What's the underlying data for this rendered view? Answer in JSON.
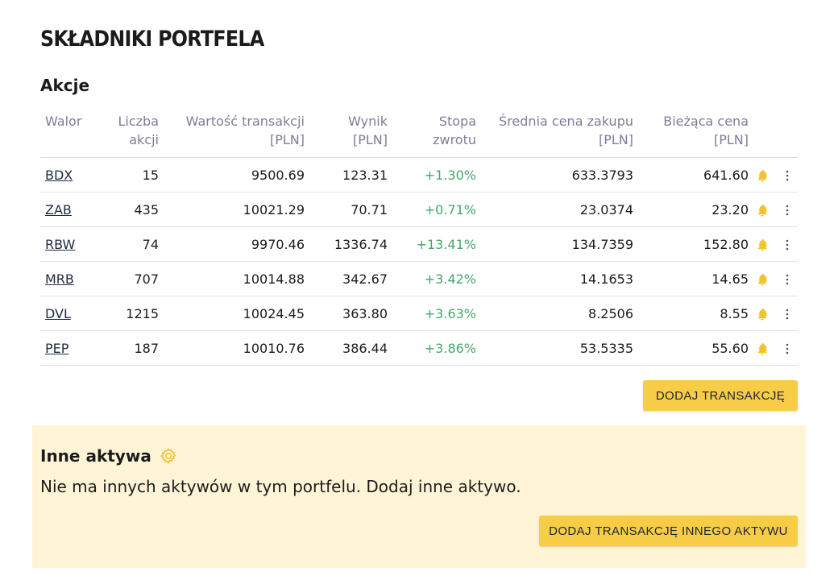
{
  "page_title": "SKŁADNIKI PORTFELA",
  "stocks": {
    "title": "Akcje",
    "columns": [
      {
        "line1": "Walor",
        "line2": ""
      },
      {
        "line1": "Liczba",
        "line2": "akcji"
      },
      {
        "line1": "Wartość transakcji",
        "line2": "[PLN]"
      },
      {
        "line1": "Wynik",
        "line2": "[PLN]"
      },
      {
        "line1": "Stopa",
        "line2": "zwrotu"
      },
      {
        "line1": "Średnia cena zakupu",
        "line2": "[PLN]"
      },
      {
        "line1": "Bieżąca cena",
        "line2": "[PLN]"
      }
    ],
    "rows": [
      {
        "ticker": "BDX",
        "shares": "15",
        "value": "9500.69",
        "result": "123.31",
        "return": "+1.30%",
        "avg_price": "633.3793",
        "price": "641.60"
      },
      {
        "ticker": "ZAB",
        "shares": "435",
        "value": "10021.29",
        "result": "70.71",
        "return": "+0.71%",
        "avg_price": "23.0374",
        "price": "23.20"
      },
      {
        "ticker": "RBW",
        "shares": "74",
        "value": "9970.46",
        "result": "1336.74",
        "return": "+13.41%",
        "avg_price": "134.7359",
        "price": "152.80"
      },
      {
        "ticker": "MRB",
        "shares": "707",
        "value": "10014.88",
        "result": "342.67",
        "return": "+3.42%",
        "avg_price": "14.1653",
        "price": "14.65"
      },
      {
        "ticker": "DVL",
        "shares": "1215",
        "value": "10024.45",
        "result": "363.80",
        "return": "+3.63%",
        "avg_price": "8.2506",
        "price": "8.55"
      },
      {
        "ticker": "PEP",
        "shares": "187",
        "value": "10010.76",
        "result": "386.44",
        "return": "+3.86%",
        "avg_price": "53.5335",
        "price": "55.60"
      }
    ],
    "add_button": "DODAJ TRANSAKCJĘ"
  },
  "other_assets": {
    "title": "Inne aktywa",
    "message": "Nie ma innych aktywów w tym portfelu. Dodaj inne aktywo.",
    "add_button": "DODAJ TRANSAKCJĘ INNEGO AKTYWU"
  },
  "icons": {
    "alert": "bell-icon",
    "row_menu": "more-vertical-icon",
    "settings": "gear-icon"
  },
  "colors": {
    "accent": "#f7cd47",
    "positive": "#46a66b",
    "header_text": "#7d7d9a",
    "panel_bg": "#fff5d6"
  }
}
